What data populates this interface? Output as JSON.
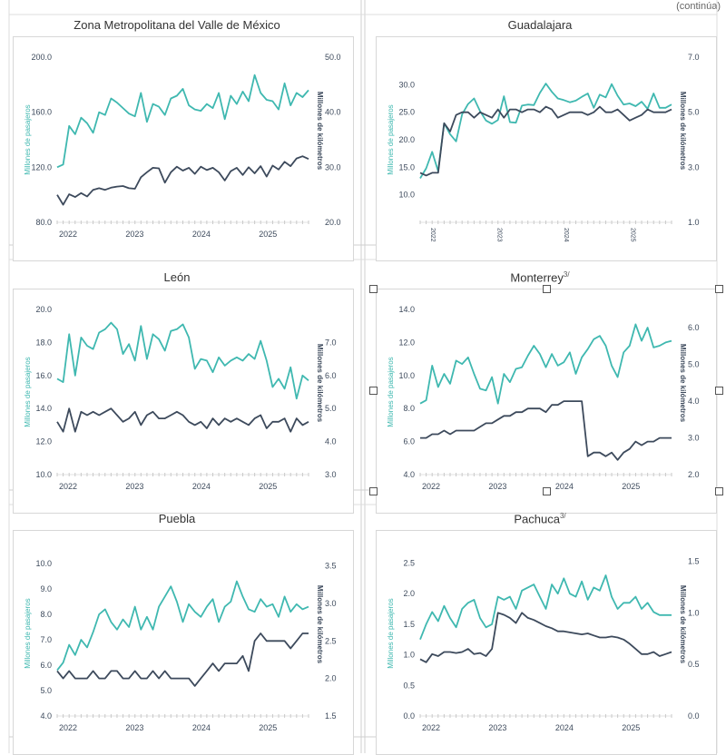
{
  "continuation_note": "(continúa)",
  "colors": {
    "passengers": "#3fb8b0",
    "kilometers": "#3d4a5c",
    "axis_text": "#3d4a5c"
  },
  "chart_data": [
    {
      "type": "line",
      "title": "Zona Metropolitana del Valle de México",
      "ylabel_left": "Millones de pasajeros",
      "ylabel_right": "Millones de kilómetros",
      "x_labels": [
        "2022",
        "2023",
        "2024",
        "2025"
      ],
      "ylim_left": [
        80,
        200
      ],
      "yticks_left": [
        "80.0",
        "120.0",
        "160.0",
        "200.0"
      ],
      "ylim_right": [
        20,
        50
      ],
      "yticks_right": [
        "20.0",
        "30.0",
        "40.0",
        "50.0"
      ],
      "series": [
        {
          "name": "",
          "axis": "left",
          "values": [
            120,
            122,
            150,
            144,
            156,
            152,
            145,
            160,
            158,
            170,
            167,
            163,
            159,
            157,
            174,
            153,
            166,
            164,
            158,
            170,
            172,
            177,
            165,
            162,
            161,
            166,
            163,
            174,
            155,
            172,
            166,
            175,
            168,
            187,
            174,
            169,
            168,
            162,
            181,
            165,
            174,
            171,
            176
          ]
        },
        {
          "name": "",
          "axis": "right",
          "values": [
            25,
            23.2,
            25.1,
            24.6,
            25.3,
            24.7,
            25.9,
            26.2,
            25.9,
            26.3,
            26.5,
            26.6,
            26.2,
            26.1,
            28.2,
            29.1,
            29.9,
            29.8,
            27.2,
            29.1,
            30.1,
            29.4,
            29.9,
            28.8,
            30.1,
            29.5,
            29.9,
            29.1,
            27.6,
            29.3,
            29.9,
            28.6,
            30,
            28.9,
            30.2,
            28.3,
            30.3,
            29.6,
            31,
            30.2,
            31.6,
            32,
            31.5
          ]
        }
      ],
      "tick_style": "years"
    },
    {
      "type": "line",
      "title": "Guadalajara",
      "ylabel_left": "Millones de pasajeros",
      "ylabel_right": "Millones de kilómetros",
      "x_labels": [
        "2022",
        "2023",
        "2024",
        "2025"
      ],
      "ylim_left": [
        5,
        35
      ],
      "yticks_left": [
        "",
        "",
        "10.0",
        "15.0",
        "20.0",
        "25.0",
        "30.0"
      ],
      "ylim_right": [
        1,
        7
      ],
      "yticks_right": [
        "1.0",
        "3.0",
        "5.0",
        "7.0"
      ],
      "series": [
        {
          "name": "",
          "axis": "left",
          "values": [
            13,
            14.8,
            17.8,
            14.3,
            23,
            21,
            19.7,
            24.6,
            26.5,
            27.5,
            25.2,
            23.5,
            22.9,
            23.6,
            27.9,
            23.2,
            23.1,
            26.2,
            26.4,
            26.3,
            28.5,
            30.2,
            28.7,
            27.5,
            27.2,
            26.8,
            27.1,
            27.8,
            28.4,
            25.8,
            28.2,
            27.7,
            30.1,
            28,
            26.4,
            26.6,
            26.1,
            26.9,
            25.6,
            28.4,
            25.8,
            25.8,
            26.4
          ]
        },
        {
          "name": "",
          "axis": "right",
          "values": [
            2.8,
            2.7,
            2.8,
            2.8,
            4.6,
            4.3,
            4.9,
            5,
            5,
            4.8,
            5,
            4.9,
            4.8,
            5.1,
            4.8,
            5.1,
            5.1,
            5,
            5.1,
            5.1,
            5,
            5.2,
            5.1,
            4.8,
            4.9,
            5,
            5,
            5,
            4.9,
            5,
            5.2,
            5,
            5,
            5.1,
            4.9,
            4.7,
            4.8,
            4.9,
            5.1,
            5,
            5,
            5,
            5.1
          ]
        }
      ],
      "tick_style": "rotated"
    },
    {
      "type": "line",
      "title": "León",
      "ylabel_left": "Millones de pasajeros",
      "ylabel_right": "Millones de kilómetros",
      "x_labels": [
        "2022",
        "2023",
        "2024",
        "2025"
      ],
      "ylim_left": [
        10,
        20
      ],
      "yticks_left": [
        "10.0",
        "12.0",
        "14.0",
        "16.0",
        "18.0",
        "20.0"
      ],
      "ylim_right": [
        3,
        8
      ],
      "yticks_right": [
        "3.0",
        "4.0",
        "5.0",
        "6.0",
        "7.0"
      ],
      "series": [
        {
          "name": "",
          "axis": "left",
          "values": [
            15.8,
            15.6,
            18.5,
            16,
            18.3,
            17.8,
            17.6,
            18.6,
            18.8,
            19.2,
            18.8,
            17.3,
            17.9,
            16.9,
            19,
            17,
            18.5,
            18.2,
            17.5,
            18.7,
            18.8,
            19.1,
            18.3,
            16.4,
            17,
            16.9,
            16.2,
            17.1,
            16.6,
            16.9,
            17.1,
            16.9,
            17.3,
            17,
            18.1,
            16.9,
            15.3,
            15.8,
            15.2,
            16.5,
            14.6,
            16,
            15.7
          ]
        },
        {
          "name": "",
          "axis": "right",
          "values": [
            4.6,
            4.3,
            5,
            4.3,
            4.9,
            4.8,
            4.9,
            4.8,
            4.9,
            5,
            4.8,
            4.6,
            4.7,
            4.9,
            4.5,
            4.8,
            4.9,
            4.7,
            4.7,
            4.8,
            4.9,
            4.8,
            4.6,
            4.5,
            4.6,
            4.4,
            4.7,
            4.5,
            4.7,
            4.6,
            4.7,
            4.6,
            4.5,
            4.7,
            4.8,
            4.4,
            4.6,
            4.6,
            4.7,
            4.3,
            4.7,
            4.5,
            4.6
          ]
        }
      ],
      "tick_style": "years"
    },
    {
      "type": "line",
      "title": "Monterrey",
      "title_sup": "3/",
      "ylabel_left": "Millones de pasajeros",
      "ylabel_right": "Millones de kilómetros",
      "x_labels": [
        "2022",
        "2023",
        "2024",
        "2025"
      ],
      "ylim_left": [
        4,
        14
      ],
      "yticks_left": [
        "4.0",
        "6.0",
        "8.0",
        "10.0",
        "12.0",
        "14.0"
      ],
      "ylim_right": [
        2,
        6.5
      ],
      "yticks_right": [
        "2.0",
        "3.0",
        "4.0",
        "5.0",
        "6.0"
      ],
      "series": [
        {
          "name": "",
          "axis": "left",
          "values": [
            8.3,
            8.5,
            10.6,
            9.3,
            10.1,
            9.5,
            10.9,
            10.7,
            11.1,
            10.1,
            9.2,
            9.1,
            9.9,
            8.3,
            10.1,
            9.6,
            10.4,
            10.5,
            11.2,
            11.8,
            11.3,
            10.5,
            11.3,
            10.6,
            10.8,
            11.4,
            10.1,
            11.1,
            11.6,
            12.2,
            12.4,
            11.8,
            10.6,
            9.9,
            11.4,
            11.8,
            13.1,
            12.1,
            12.9,
            11.7,
            11.8,
            12,
            12.1
          ]
        },
        {
          "name": "",
          "axis": "right",
          "values": [
            3,
            3,
            3.1,
            3.1,
            3.2,
            3.1,
            3.2,
            3.2,
            3.2,
            3.2,
            3.3,
            3.4,
            3.4,
            3.5,
            3.6,
            3.6,
            3.7,
            3.7,
            3.8,
            3.8,
            3.8,
            3.7,
            3.9,
            3.9,
            4,
            4,
            4,
            4,
            2.5,
            2.6,
            2.6,
            2.5,
            2.6,
            2.4,
            2.6,
            2.7,
            2.9,
            2.8,
            2.9,
            2.9,
            3,
            3,
            3
          ]
        }
      ],
      "tick_style": "years"
    },
    {
      "type": "line",
      "title": "Puebla",
      "ylabel_left": "Millones de pasajeros",
      "ylabel_right": "Millones de kilómetros",
      "x_labels": [
        "2022",
        "2023",
        "2024",
        "2025"
      ],
      "ylim_left": [
        4,
        10.5
      ],
      "yticks_left": [
        "4.0",
        "5.0",
        "6.0",
        "7.0",
        "8.0",
        "9.0",
        "10.0"
      ],
      "ylim_right": [
        1.5,
        3.7
      ],
      "yticks_right": [
        "1.5",
        "2.0",
        "2.5",
        "3.0",
        "3.5"
      ],
      "series": [
        {
          "name": "",
          "axis": "left",
          "values": [
            5.8,
            6.1,
            6.8,
            6.4,
            7,
            6.7,
            7.3,
            8,
            8.2,
            7.7,
            7.4,
            7.8,
            7.5,
            8.3,
            7.4,
            7.9,
            7.4,
            8.3,
            8.7,
            9.1,
            8.5,
            7.7,
            8.4,
            8.1,
            7.9,
            8.3,
            8.6,
            7.7,
            8.3,
            8.5,
            9.3,
            8.7,
            8.2,
            8.1,
            8.6,
            8.3,
            8.4,
            7.9,
            8.7,
            8.1,
            8.4,
            8.2,
            8.3
          ]
        },
        {
          "name": "",
          "axis": "right",
          "values": [
            2.1,
            2,
            2.1,
            2,
            2,
            2,
            2.1,
            2,
            2,
            2.1,
            2.1,
            2,
            2,
            2.1,
            2,
            2,
            2.1,
            2,
            2.1,
            2,
            2,
            2,
            2,
            1.9,
            2,
            2.1,
            2.2,
            2.1,
            2.2,
            2.2,
            2.2,
            2.3,
            2.1,
            2.5,
            2.6,
            2.5,
            2.5,
            2.5,
            2.5,
            2.4,
            2.5,
            2.6,
            2.6
          ]
        }
      ],
      "tick_style": "years"
    },
    {
      "type": "line",
      "title": "Pachuca",
      "title_sup": "3/",
      "ylabel_left": "Millones de pasajeros",
      "ylabel_right": "Millones de kilómetros",
      "x_labels": [
        "2022",
        "2023",
        "2024",
        "2025"
      ],
      "ylim_left": [
        0,
        2.7
      ],
      "yticks_left": [
        "0.0",
        "0.5",
        "1.0",
        "1.5",
        "2.0",
        "2.5"
      ],
      "ylim_right": [
        0,
        1.6
      ],
      "yticks_right": [
        "0.0",
        "0.5",
        "1.0",
        "1.5"
      ],
      "series": [
        {
          "name": "",
          "axis": "left",
          "values": [
            1.25,
            1.5,
            1.7,
            1.55,
            1.8,
            1.6,
            1.45,
            1.75,
            1.85,
            1.9,
            1.6,
            1.45,
            1.5,
            1.95,
            1.9,
            1.95,
            1.75,
            2.05,
            2.1,
            2.15,
            1.95,
            1.75,
            2.15,
            2.0,
            2.25,
            2.0,
            1.95,
            2.2,
            1.9,
            2.1,
            2.05,
            2.3,
            1.95,
            1.75,
            1.85,
            1.85,
            1.95,
            1.75,
            1.85,
            1.7,
            1.65,
            1.65,
            1.65
          ]
        },
        {
          "name": "",
          "axis": "right",
          "values": [
            0.55,
            0.52,
            0.6,
            0.58,
            0.62,
            0.62,
            0.61,
            0.62,
            0.65,
            0.6,
            0.61,
            0.58,
            0.65,
            1.0,
            0.98,
            0.95,
            0.9,
            1.0,
            0.95,
            0.93,
            0.9,
            0.87,
            0.85,
            0.82,
            0.82,
            0.81,
            0.8,
            0.79,
            0.8,
            0.78,
            0.76,
            0.76,
            0.77,
            0.76,
            0.74,
            0.7,
            0.65,
            0.6,
            0.6,
            0.62,
            0.58,
            0.6,
            0.62
          ]
        }
      ],
      "tick_style": "years"
    }
  ]
}
